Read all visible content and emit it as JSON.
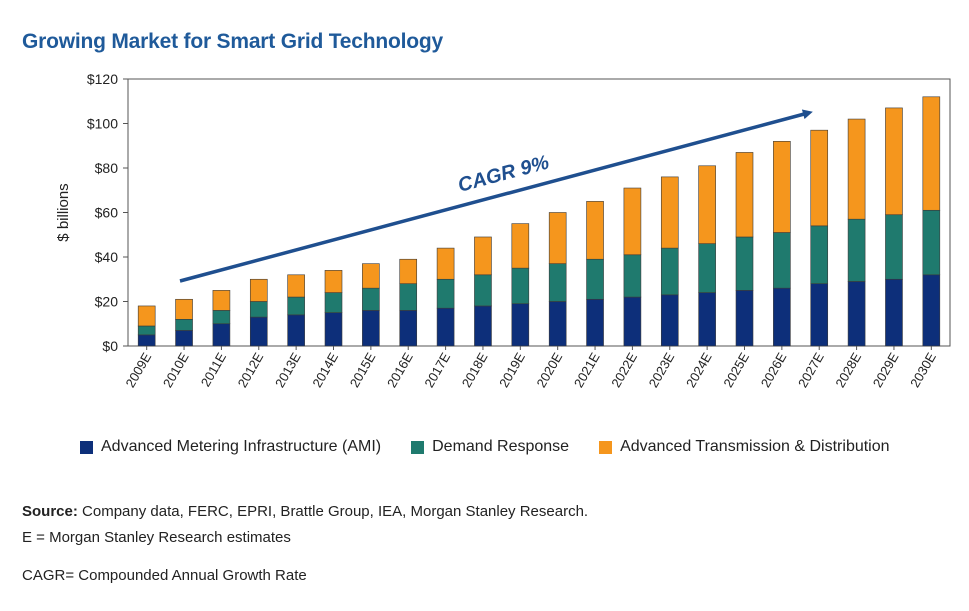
{
  "title": "Growing Market for Smart Grid Technology",
  "chart_data": {
    "type": "bar",
    "stacked": true,
    "ylabel": "$ billions",
    "xlabel": "",
    "ylim": [
      0,
      120
    ],
    "yticks": [
      0,
      20,
      40,
      60,
      80,
      100,
      120
    ],
    "ytick_labels": [
      "$0",
      "$20",
      "$40",
      "$60",
      "$80",
      "$100",
      "$120"
    ],
    "categories": [
      "2009E",
      "2010E",
      "2011E",
      "2012E",
      "2013E",
      "2014E",
      "2015E",
      "2016E",
      "2017E",
      "2018E",
      "2019E",
      "2020E",
      "2021E",
      "2022E",
      "2023E",
      "2024E",
      "2025E",
      "2026E",
      "2027E",
      "2028E",
      "2029E",
      "2030E"
    ],
    "series": [
      {
        "name": "Advanced Metering Infrastructure (AMI)",
        "color": "#0d2f7a",
        "values": [
          5,
          7,
          10,
          13,
          14,
          15,
          16,
          16,
          17,
          18,
          19,
          20,
          21,
          22,
          23,
          24,
          25,
          26,
          28,
          29,
          30,
          32
        ]
      },
      {
        "name": "Demand Response",
        "color": "#1f7a6e",
        "values": [
          4,
          5,
          6,
          7,
          8,
          9,
          10,
          12,
          13,
          14,
          16,
          17,
          18,
          19,
          21,
          22,
          24,
          25,
          26,
          28,
          29,
          29
        ]
      },
      {
        "name": "Advanced Transmission & Distribution",
        "color": "#f5961d",
        "values": [
          9,
          9,
          9,
          10,
          10,
          10,
          11,
          11,
          14,
          17,
          20,
          23,
          26,
          30,
          32,
          35,
          38,
          41,
          43,
          45,
          48,
          51
        ]
      }
    ],
    "annotation": "CAGR 9%",
    "grid": false,
    "legend_position": "bottom"
  },
  "footer": {
    "source_label": "Source:",
    "source_text": " Company data, FERC, EPRI, Brattle Group, IEA, Morgan Stanley Research.",
    "note": "E = Morgan Stanley Research estimates",
    "cagr_note": "CAGR= Compounded Annual Growth Rate"
  }
}
